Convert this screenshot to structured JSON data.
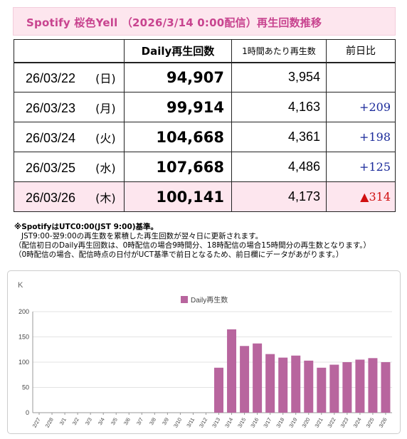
{
  "title": "Spotify 桜色Yell （2026/3/14 0:00配信）再生回数推移",
  "table": {
    "headers": [
      "",
      "Daily再生回数",
      "1時間あたり再生数",
      "前日比"
    ],
    "rows": [
      {
        "date": "26/03/22",
        "dow": "(日)",
        "daily": "94,907",
        "per_hour": "3,954",
        "diff": "",
        "diff_type": "none"
      },
      {
        "date": "26/03/23",
        "dow": "(月)",
        "daily": "99,914",
        "per_hour": "4,163",
        "diff": "+209",
        "diff_type": "up"
      },
      {
        "date": "26/03/24",
        "dow": "(火)",
        "daily": "104,668",
        "per_hour": "4,361",
        "diff": "+198",
        "diff_type": "up"
      },
      {
        "date": "26/03/25",
        "dow": "(水)",
        "daily": "107,668",
        "per_hour": "4,486",
        "diff": "+125",
        "diff_type": "up"
      },
      {
        "date": "26/03/26",
        "dow": "(木)",
        "daily": "100,141",
        "per_hour": "4,173",
        "diff": "▲314",
        "diff_type": "down"
      }
    ]
  },
  "notes": [
    "※SpotifyはUTC0:00(JST 9:00)基準。",
    "JST9:00-翌9:00の再生数を累積した再生回数が翌々日に更新されます。",
    "（配信初日のDaily再生回数は、0時配信の場合9時間分、18時配信の場合15時間分の再生数となります。）",
    "（0時配信の場合、配信時点の日付がUCT基準で前日となるため、前日欄にデータがあがります。）"
  ],
  "colors": {
    "title_text": "#c8448f",
    "title_bg": "#fde6ee",
    "bar": "#b8659e",
    "up": "#1a2a9a",
    "down": "#d01010"
  },
  "chart_data": {
    "type": "bar",
    "unit_label": "K",
    "legend": [
      "Daily再生数"
    ],
    "legend_position": "top-center",
    "grid": true,
    "ylim": [
      0,
      200
    ],
    "yticks": [
      0,
      50,
      100,
      150,
      200
    ],
    "categories": [
      "2/27",
      "2/28",
      "3/1",
      "3/2",
      "3/3",
      "3/4",
      "3/5",
      "3/6",
      "3/7",
      "3/8",
      "3/9",
      "3/10",
      "3/11",
      "3/12",
      "3/13",
      "3/14",
      "3/15",
      "3/16",
      "3/17",
      "3/18",
      "3/19",
      "3/20",
      "3/21",
      "3/22",
      "3/23",
      "3/24",
      "3/25",
      "3/26"
    ],
    "series": [
      {
        "name": "Daily再生数",
        "values": [
          0,
          0,
          0,
          0,
          0,
          0,
          0,
          0,
          0,
          0,
          0,
          0,
          0,
          0,
          89,
          165,
          132,
          137,
          116,
          109,
          113,
          103,
          89,
          95,
          100,
          105,
          108,
          100
        ]
      }
    ]
  }
}
